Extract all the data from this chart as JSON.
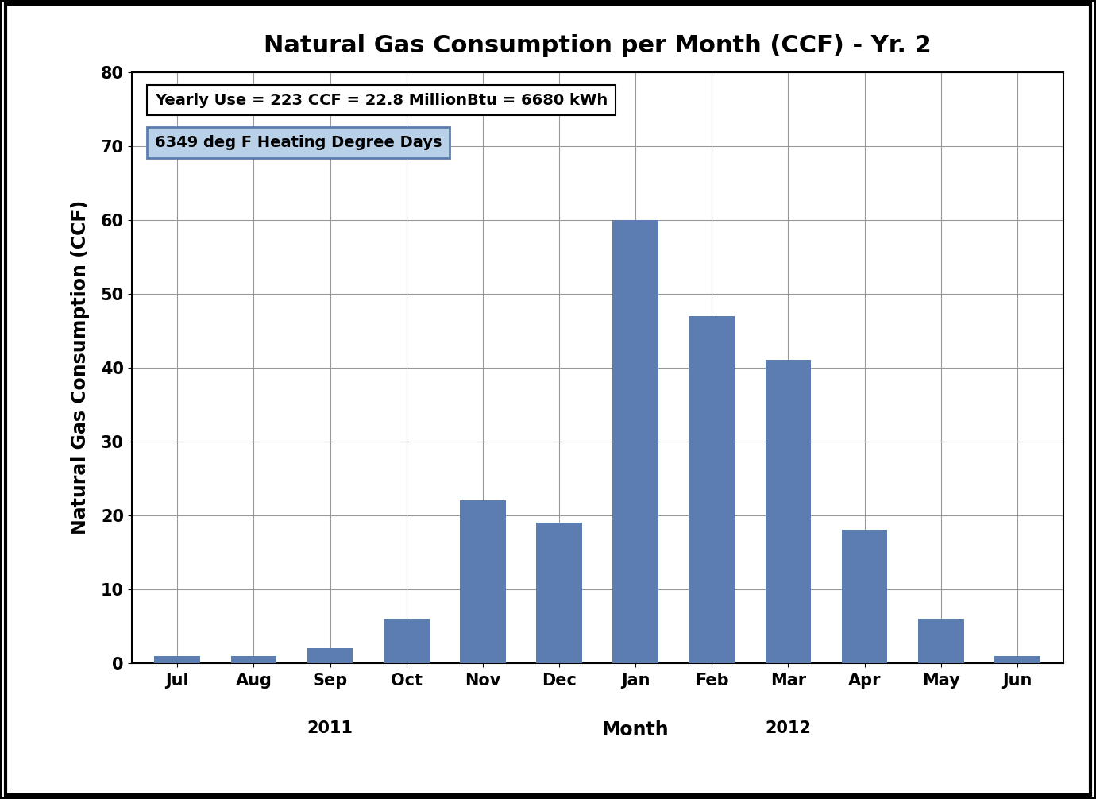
{
  "months": [
    "Jul",
    "Aug",
    "Sep",
    "Oct",
    "Nov",
    "Dec",
    "Jan",
    "Feb",
    "Mar",
    "Apr",
    "May",
    "Jun"
  ],
  "values": [
    1,
    1,
    2,
    6,
    22,
    19,
    60,
    47,
    41,
    18,
    6,
    1
  ],
  "bar_color": "#5b7db1",
  "title": "Natural Gas Consumption per Month (CCF) - Yr. 2",
  "ylabel": "Natural Gas Consumption (CCF)",
  "xlabel": "Month",
  "xlabel_idx": 6,
  "year_labels": [
    [
      "2011",
      2
    ],
    [
      "2012",
      8
    ]
  ],
  "ylim": [
    0,
    80
  ],
  "yticks": [
    0,
    10,
    20,
    30,
    40,
    50,
    60,
    70,
    80
  ],
  "annotation_line1": "Yearly Use = 223 CCF = 22.8 MillionBtu = 6680 kWh",
  "annotation_line2": "6349 deg F Heating Degree Days",
  "background_color": "#ffffff",
  "grid_color": "#999999",
  "title_fontsize": 22,
  "axis_label_fontsize": 17,
  "tick_fontsize": 15,
  "annotation_fontsize": 14,
  "bar_width": 0.6
}
